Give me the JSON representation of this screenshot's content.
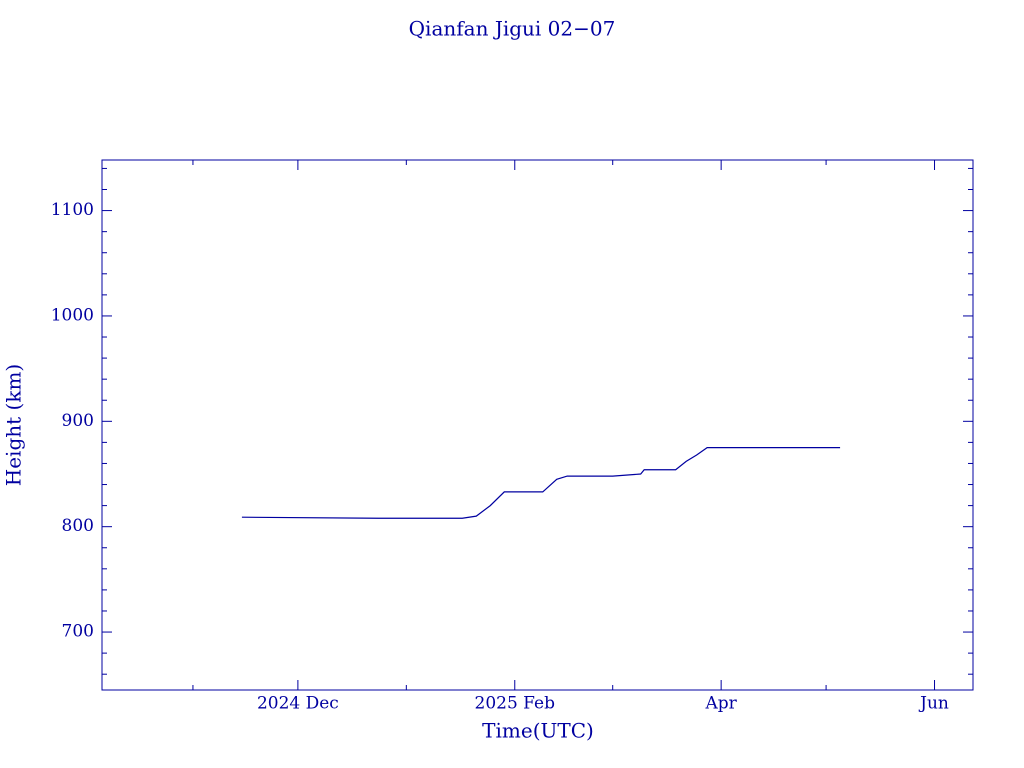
{
  "chart_data": {
    "type": "line",
    "title": "Qianfan Jigui 02−07",
    "xlabel": "Time(UTC)",
    "ylabel": "Height (km)",
    "x": [
      "2024-11-15",
      "2024-12-24",
      "2025-01-17",
      "2025-01-21",
      "2025-01-25",
      "2025-01-29",
      "2025-02-09",
      "2025-02-13",
      "2025-02-16",
      "2025-03-01",
      "2025-03-09",
      "2025-03-10",
      "2025-03-19",
      "2025-03-22",
      "2025-03-25",
      "2025-03-28",
      "2025-05-05"
    ],
    "series": [
      {
        "color": "#0000a0",
        "values": [
          809,
          808,
          808,
          810,
          820,
          833,
          833,
          845,
          848,
          848,
          850,
          854,
          854,
          862,
          868,
          875,
          875
        ]
      }
    ],
    "xlim": [
      "2024-10-06",
      "2025-06-12"
    ],
    "xticks": [
      {
        "value": "2024-12-01",
        "label": "2024 Dec"
      },
      {
        "value": "2025-02-01",
        "label": "2025 Feb"
      },
      {
        "value": "2025-04-01",
        "label": "Apr"
      },
      {
        "value": "2025-06-01",
        "label": "Jun"
      }
    ],
    "xminorticks": [
      "2024-11-01",
      "2025-01-01",
      "2025-03-01",
      "2025-05-01"
    ],
    "ylim": [
      645,
      1148
    ],
    "yticks": [
      700,
      800,
      900,
      1000,
      1100
    ],
    "yminorticks": [
      660,
      680,
      720,
      740,
      760,
      780,
      820,
      840,
      860,
      880,
      920,
      940,
      960,
      980,
      1020,
      1040,
      1060,
      1080,
      1120,
      1140
    ],
    "color": "#0000a0"
  }
}
